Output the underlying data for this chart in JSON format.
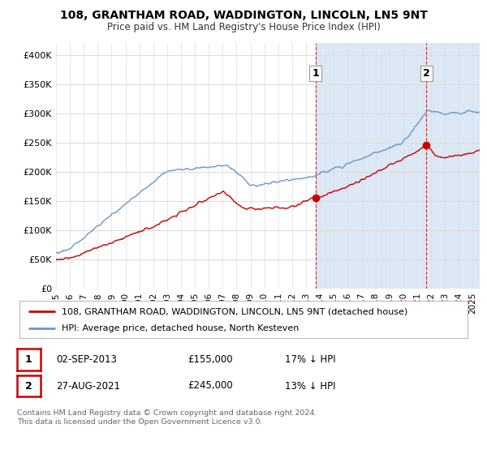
{
  "title": "108, GRANTHAM ROAD, WADDINGTON, LINCOLN, LN5 9NT",
  "subtitle": "Price paid vs. HM Land Registry's House Price Index (HPI)",
  "ylabel_ticks": [
    "£0",
    "£50K",
    "£100K",
    "£150K",
    "£200K",
    "£250K",
    "£300K",
    "£350K",
    "£400K"
  ],
  "ytick_values": [
    0,
    50000,
    100000,
    150000,
    200000,
    250000,
    300000,
    350000,
    400000
  ],
  "ylim": [
    0,
    420000
  ],
  "background_color": "#ffffff",
  "plot_bg": "#ffffff",
  "hpi_color": "#6699cc",
  "price_color": "#cc0000",
  "shade_color": "#dce8f5",
  "marker1_date": 2013.67,
  "marker1_price": 155000,
  "marker2_date": 2021.65,
  "marker2_price": 245000,
  "legend_line1": "108, GRANTHAM ROAD, WADDINGTON, LINCOLN, LN5 9NT (detached house)",
  "legend_line2": "HPI: Average price, detached house, North Kesteven",
  "table_row1": [
    "1",
    "02-SEP-2013",
    "£155,000",
    "17% ↓ HPI"
  ],
  "table_row2": [
    "2",
    "27-AUG-2021",
    "£245,000",
    "13% ↓ HPI"
  ],
  "footnote": "Contains HM Land Registry data © Crown copyright and database right 2024.\nThis data is licensed under the Open Government Licence v3.0.",
  "xmin": 1995,
  "xmax": 2025.5
}
